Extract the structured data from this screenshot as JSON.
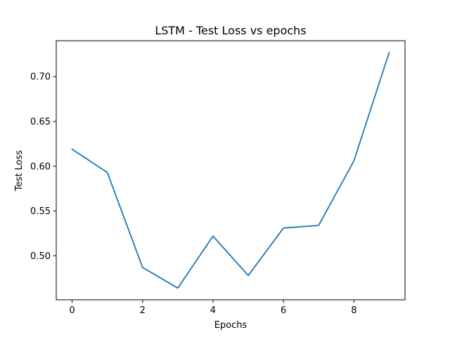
{
  "chart_data": {
    "type": "line",
    "title": "LSTM - Test Loss vs epochs",
    "xlabel": "Epochs",
    "ylabel": "Test Loss",
    "x": [
      0,
      1,
      2,
      3,
      4,
      5,
      6,
      7,
      8,
      9
    ],
    "series": [
      {
        "values": [
          0.619,
          0.593,
          0.487,
          0.464,
          0.522,
          0.478,
          0.531,
          0.534,
          0.606,
          0.727
        ],
        "color": "#1f77b4"
      }
    ],
    "xlim": [
      -0.45,
      9.45
    ],
    "ylim": [
      0.4509,
      0.7401
    ],
    "xticks": [
      0,
      2,
      4,
      6,
      8
    ],
    "xtick_labels": [
      "0",
      "2",
      "4",
      "6",
      "8"
    ],
    "yticks": [
      0.5,
      0.55,
      0.6,
      0.65,
      0.7
    ],
    "ytick_labels": [
      "0.50",
      "0.55",
      "0.60",
      "0.65",
      "0.70"
    ],
    "grid": false,
    "legend": false
  }
}
